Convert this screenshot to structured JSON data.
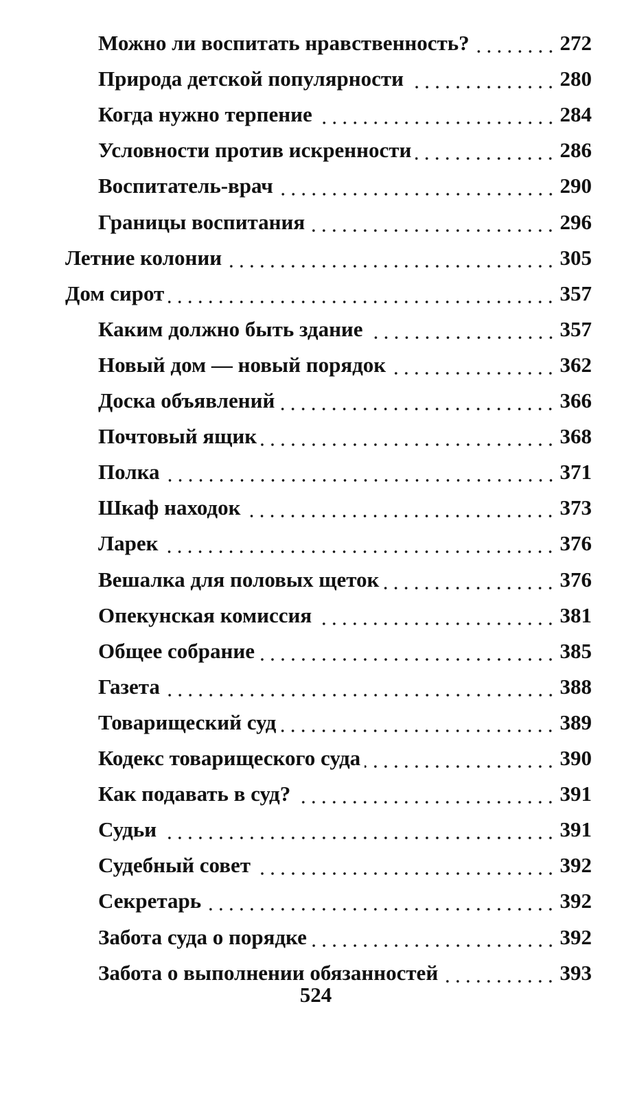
{
  "toc": [
    {
      "items": [
        {
          "title": "Можно ли воспитать нравственность?",
          "page": 272
        },
        {
          "title": "Природа детской популярности",
          "page": 280
        },
        {
          "title": "Когда нужно терпение",
          "page": 284
        },
        {
          "title": "Условности против искренности",
          "page": 286
        },
        {
          "title": "Воспитатель-врач",
          "page": 290
        },
        {
          "title": "Границы воспитания",
          "page": 296
        }
      ]
    },
    {
      "title": "Летние колонии",
      "page": 305
    },
    {
      "title": "Дом сирот",
      "page": 357,
      "items": [
        {
          "title": "Каким должно быть здание",
          "page": 357
        },
        {
          "title": "Новый дом — новый порядок",
          "page": 362
        },
        {
          "title": "Доска объявлений",
          "page": 366
        },
        {
          "title": "Почтовый ящик",
          "page": 368
        },
        {
          "title": "Полка",
          "page": 371
        },
        {
          "title": "Шкаф находок",
          "page": 373
        },
        {
          "title": "Ларек",
          "page": 376
        },
        {
          "title": "Вешалка для половых щеток",
          "page": 376
        },
        {
          "title": "Опекунская комиссия",
          "page": 381
        },
        {
          "title": "Общее собрание",
          "page": 385
        },
        {
          "title": "Газета",
          "page": 388
        },
        {
          "title": "Товарищеский суд",
          "page": 389
        },
        {
          "title": "Кодекс товарищеского суда",
          "page": 390
        },
        {
          "title": "Как подавать в суд?",
          "page": 391
        },
        {
          "title": "Судьи",
          "page": 391
        },
        {
          "title": "Судебный совет",
          "page": 392
        },
        {
          "title": "Секретарь",
          "page": 392
        },
        {
          "title": "Забота суда о порядке",
          "page": 392
        },
        {
          "title": "Забота о выполнении обязанностей",
          "page": 393
        }
      ]
    }
  ],
  "page_number": 524
}
